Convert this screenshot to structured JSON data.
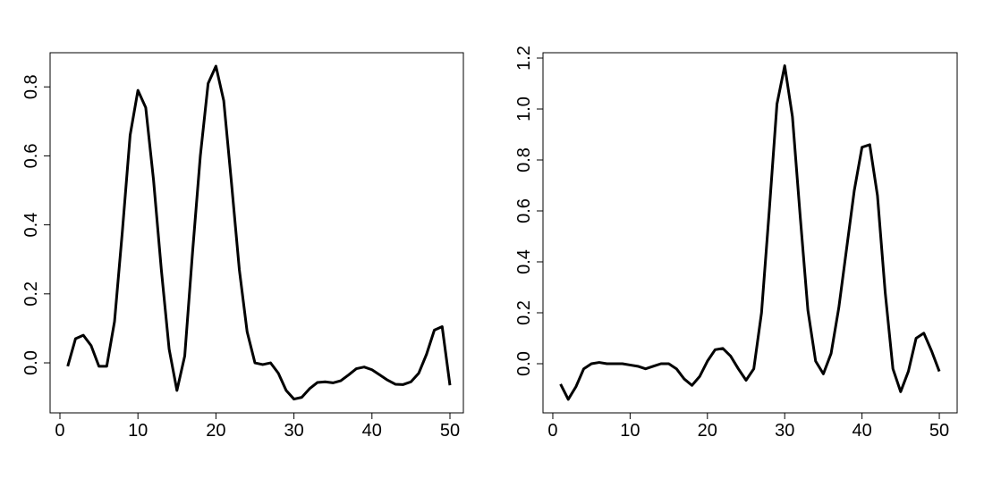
{
  "chart_data": [
    {
      "type": "line",
      "x": [
        1,
        2,
        3,
        4,
        5,
        6,
        7,
        8,
        9,
        10,
        11,
        12,
        13,
        14,
        15,
        16,
        17,
        18,
        19,
        20,
        21,
        22,
        23,
        24,
        25,
        26,
        27,
        28,
        29,
        30,
        31,
        32,
        33,
        34,
        35,
        36,
        37,
        38,
        39,
        40,
        41,
        42,
        43,
        44,
        45,
        46,
        47,
        48,
        49,
        50
      ],
      "values": [
        -0.01,
        0.07,
        0.08,
        0.05,
        -0.01,
        -0.01,
        0.12,
        0.38,
        0.66,
        0.79,
        0.74,
        0.53,
        0.27,
        0.04,
        -0.08,
        0.02,
        0.32,
        0.6,
        0.81,
        0.86,
        0.76,
        0.52,
        0.27,
        0.09,
        0.0,
        -0.005,
        0.0,
        -0.03,
        -0.08,
        -0.105,
        -0.1,
        -0.075,
        -0.057,
        -0.055,
        -0.058,
        -0.052,
        -0.035,
        -0.017,
        -0.012,
        -0.02,
        -0.035,
        -0.05,
        -0.062,
        -0.063,
        -0.055,
        -0.03,
        0.025,
        0.095,
        0.105,
        -0.065
      ],
      "color": "#000000",
      "xlim": [
        -1.26,
        51.72
      ],
      "ylim": [
        -0.145,
        0.899
      ],
      "xticks": [
        0,
        10,
        20,
        30,
        40,
        50
      ],
      "yticks": [
        {
          "value": 0,
          "label": "0.0"
        },
        0.2,
        0.4,
        0.6,
        0.8
      ]
    },
    {
      "type": "line",
      "x": [
        1,
        2,
        3,
        4,
        5,
        6,
        7,
        8,
        9,
        10,
        11,
        12,
        13,
        14,
        15,
        16,
        17,
        18,
        19,
        20,
        21,
        22,
        23,
        24,
        25,
        26,
        27,
        28,
        29,
        30,
        31,
        32,
        33,
        34,
        35,
        36,
        37,
        38,
        39,
        40,
        41,
        42,
        43,
        44,
        45,
        46,
        47,
        48,
        49,
        50
      ],
      "values": [
        -0.08,
        -0.14,
        -0.09,
        -0.02,
        0.0,
        0.005,
        0.0,
        0.0,
        0.0,
        -0.005,
        -0.01,
        -0.02,
        -0.01,
        0.0,
        0.0,
        -0.02,
        -0.06,
        -0.085,
        -0.05,
        0.01,
        0.055,
        0.06,
        0.03,
        -0.02,
        -0.065,
        -0.02,
        0.2,
        0.6,
        1.02,
        1.17,
        0.97,
        0.58,
        0.21,
        0.01,
        -0.04,
        0.04,
        0.22,
        0.45,
        0.68,
        0.85,
        0.86,
        0.66,
        0.28,
        -0.02,
        -0.11,
        -0.03,
        0.1,
        0.12,
        0.05,
        -0.03
      ],
      "color": "#000000",
      "xlim": [
        -1.27,
        52.31
      ],
      "ylim": [
        -0.193,
        1.221
      ],
      "xticks": [
        0,
        10,
        20,
        30,
        40,
        50
      ],
      "yticks": [
        {
          "value": 0,
          "label": "0.0"
        },
        0.2,
        0.4,
        0.6,
        0.8,
        {
          "value": 1,
          "label": "1.0"
        },
        1.2
      ]
    }
  ]
}
